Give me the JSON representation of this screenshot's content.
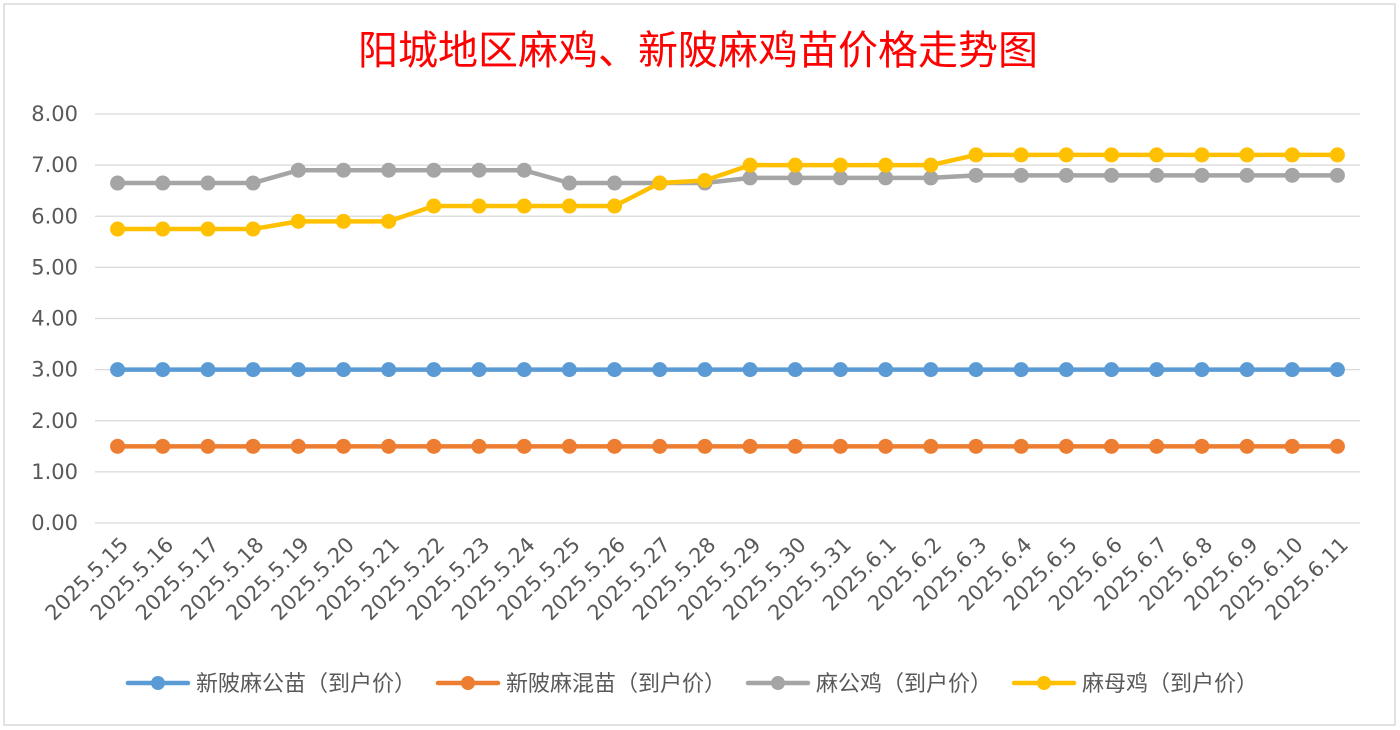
{
  "chart_data": {
    "type": "line",
    "title": "阳城地区麻鸡、新陂麻鸡苗价格走势图",
    "xlabel": "",
    "ylabel": "",
    "ylim": [
      0,
      8
    ],
    "ytick_labels": [
      "0.00",
      "1.00",
      "2.00",
      "3.00",
      "4.00",
      "5.00",
      "6.00",
      "7.00",
      "8.00"
    ],
    "grid": true,
    "legend_position": "bottom",
    "categories": [
      "2025.5.15",
      "2025.5.16",
      "2025.5.17",
      "2025.5.18",
      "2025.5.19",
      "2025.5.20",
      "2025.5.21",
      "2025.5.22",
      "2025.5.23",
      "2025.5.24",
      "2025.5.25",
      "2025.5.26",
      "2025.5.27",
      "2025.5.28",
      "2025.5.29",
      "2025.5.30",
      "2025.5.31",
      "2025.6.1",
      "2025.6.2",
      "2025.6.3",
      "2025.6.4",
      "2025.6.5",
      "2025.6.6",
      "2025.6.7",
      "2025.6.8",
      "2025.6.9",
      "2025.6.10",
      "2025.6.11"
    ],
    "series": [
      {
        "name": "新陂麻公苗（到户价）",
        "color": "#5B9BD5",
        "values": [
          3.0,
          3.0,
          3.0,
          3.0,
          3.0,
          3.0,
          3.0,
          3.0,
          3.0,
          3.0,
          3.0,
          3.0,
          3.0,
          3.0,
          3.0,
          3.0,
          3.0,
          3.0,
          3.0,
          3.0,
          3.0,
          3.0,
          3.0,
          3.0,
          3.0,
          3.0,
          3.0,
          3.0
        ]
      },
      {
        "name": "新陂麻混苗（到户价）",
        "color": "#ED7D31",
        "values": [
          1.5,
          1.5,
          1.5,
          1.5,
          1.5,
          1.5,
          1.5,
          1.5,
          1.5,
          1.5,
          1.5,
          1.5,
          1.5,
          1.5,
          1.5,
          1.5,
          1.5,
          1.5,
          1.5,
          1.5,
          1.5,
          1.5,
          1.5,
          1.5,
          1.5,
          1.5,
          1.5,
          1.5
        ]
      },
      {
        "name": "麻公鸡（到户价）",
        "color": "#A5A5A5",
        "values": [
          6.65,
          6.65,
          6.65,
          6.65,
          6.9,
          6.9,
          6.9,
          6.9,
          6.9,
          6.9,
          6.65,
          6.65,
          6.65,
          6.65,
          6.75,
          6.75,
          6.75,
          6.75,
          6.75,
          6.8,
          6.8,
          6.8,
          6.8,
          6.8,
          6.8,
          6.8,
          6.8,
          6.8
        ]
      },
      {
        "name": "麻母鸡（到户价）",
        "color": "#FFC000",
        "values": [
          5.75,
          5.75,
          5.75,
          5.75,
          5.9,
          5.9,
          5.9,
          6.2,
          6.2,
          6.2,
          6.2,
          6.2,
          6.65,
          6.7,
          7.0,
          7.0,
          7.0,
          7.0,
          7.0,
          7.2,
          7.2,
          7.2,
          7.2,
          7.2,
          7.2,
          7.2,
          7.2,
          7.2
        ]
      }
    ]
  }
}
